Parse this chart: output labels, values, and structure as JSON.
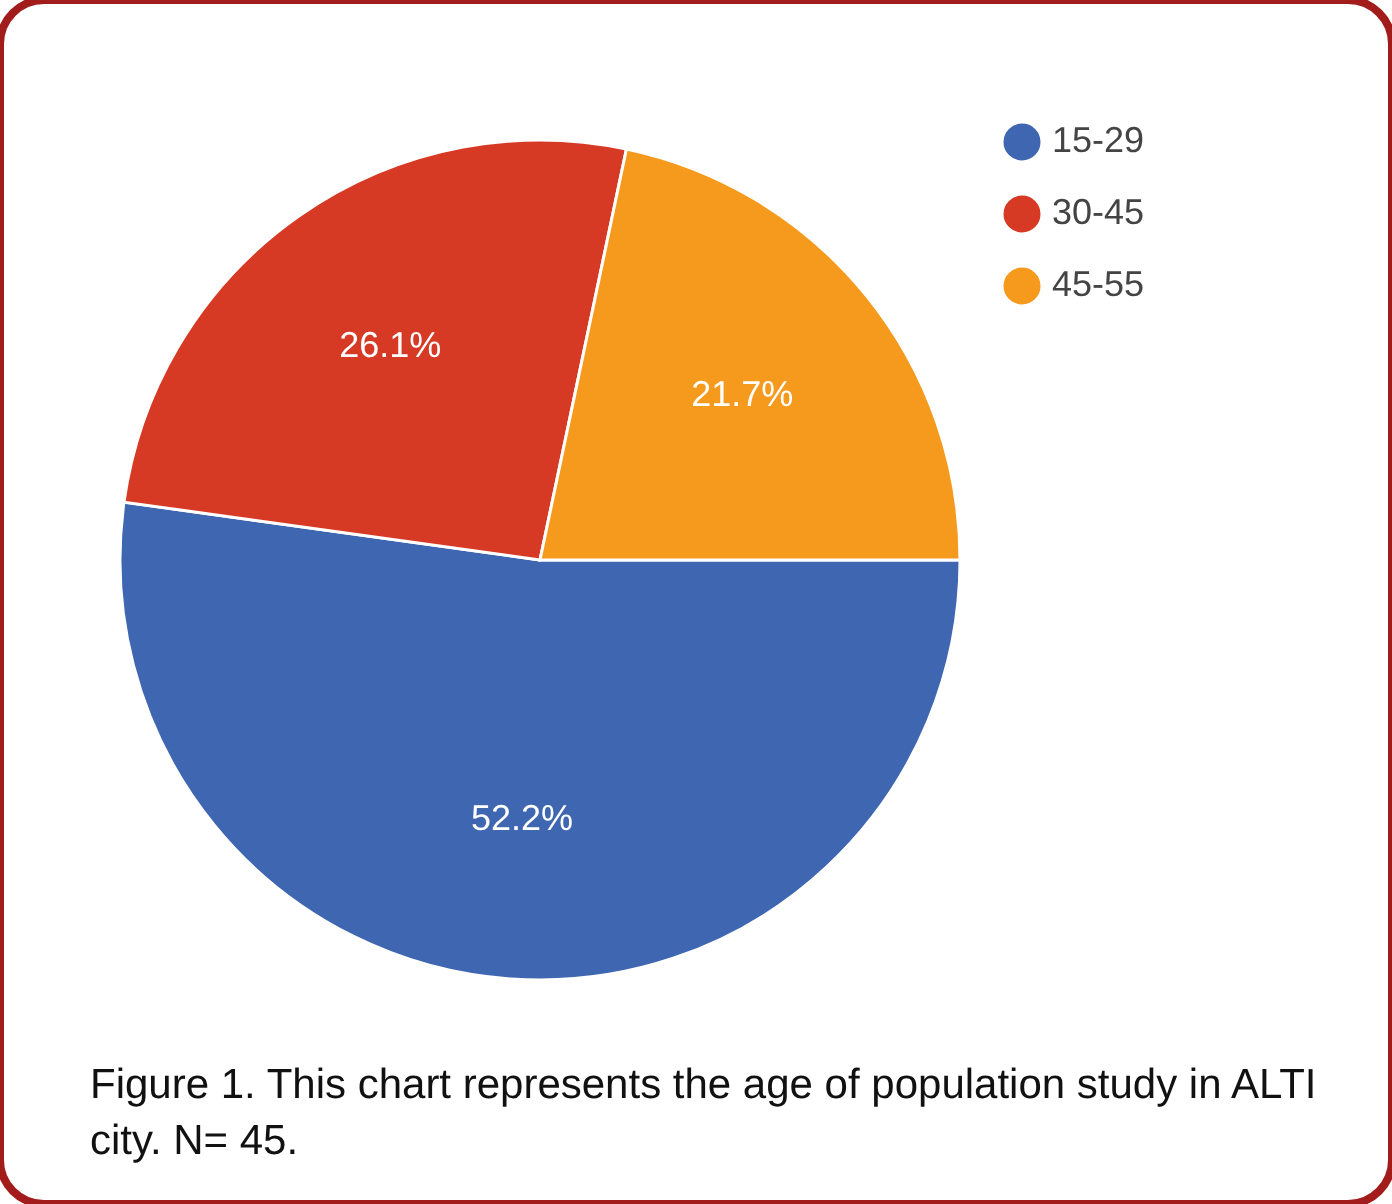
{
  "chart_data": {
    "type": "pie",
    "categories": [
      "15-29",
      "30-45",
      "45-55"
    ],
    "values": [
      52.2,
      26.1,
      21.7
    ],
    "colors": [
      "#3f66b0",
      "#d63a25",
      "#f59a1c"
    ],
    "value_labels": [
      "52.2%",
      "26.1%",
      "21.7%"
    ],
    "legend": "top right",
    "annotations": [
      "Figure 1. This chart represents the age of population study in ALTI city. N= 45."
    ]
  }
}
